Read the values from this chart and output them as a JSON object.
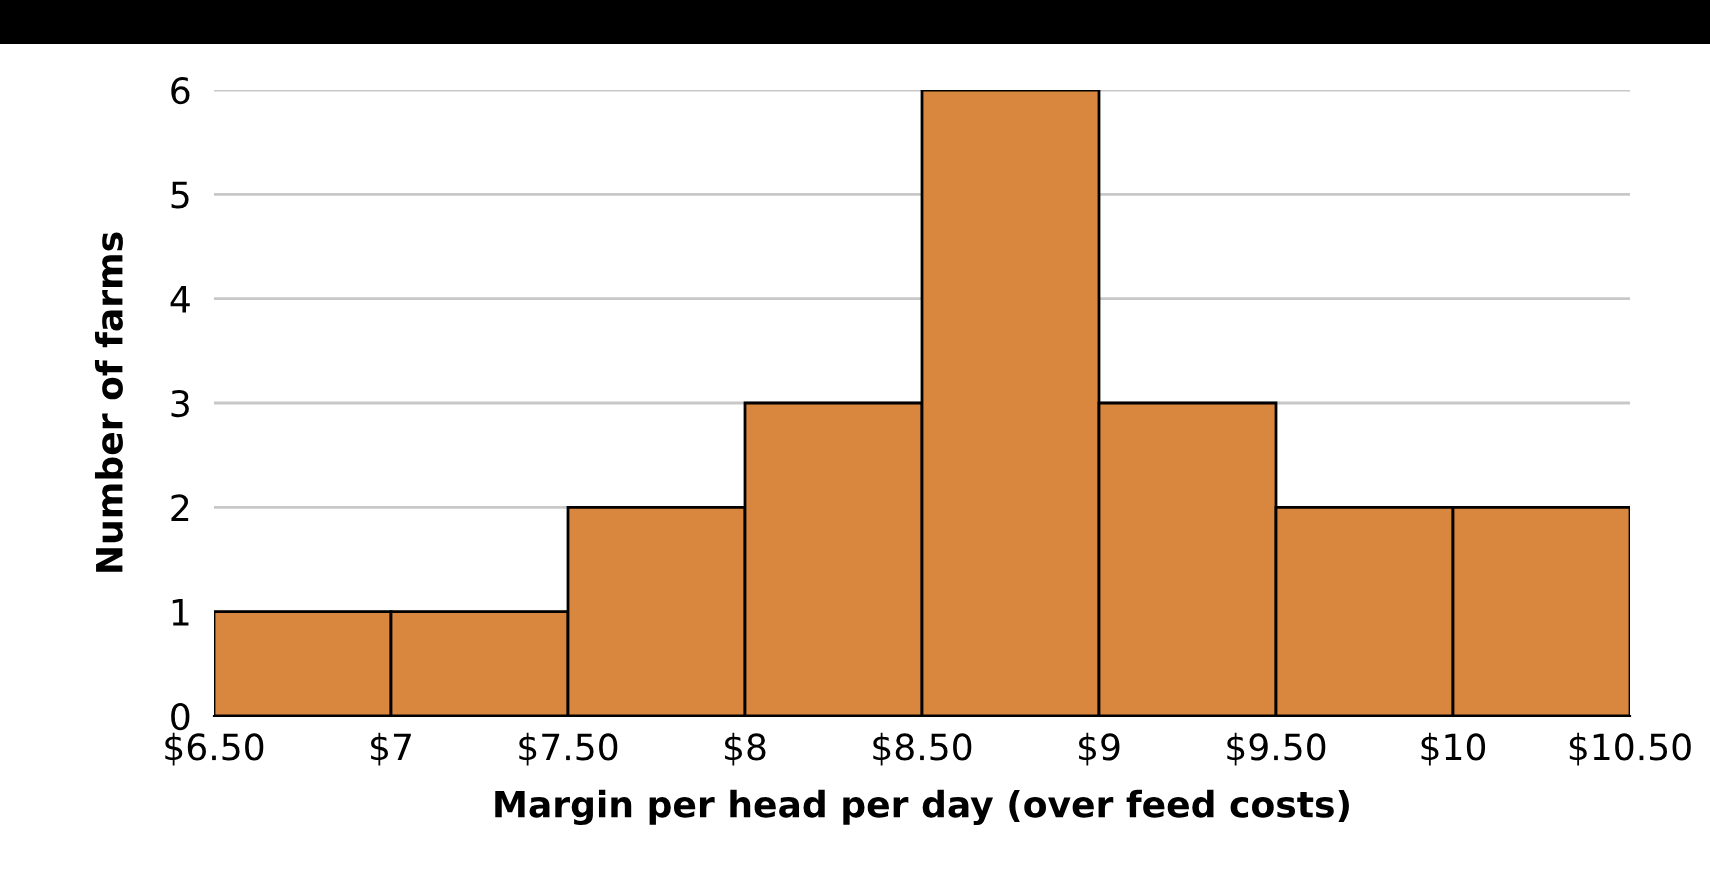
{
  "chart_data": {
    "type": "histogram",
    "xlabel": "Margin per head per day (over feed costs)",
    "ylabel": "Number of farms",
    "bins": [
      6.5,
      7,
      7.5,
      8,
      8.5,
      9,
      9.5,
      10,
      10.5
    ],
    "values": [
      1,
      1,
      2,
      3,
      6,
      3,
      2,
      2
    ],
    "color": "#d9873f",
    "xlim": [
      6.5,
      10.5
    ],
    "xticks": [
      {
        "value": 6.5,
        "label": "$6.50"
      },
      {
        "value": 7,
        "label": "$7"
      },
      {
        "value": 7.5,
        "label": "$7.50"
      },
      {
        "value": 8,
        "label": "$8"
      },
      {
        "value": 8.5,
        "label": "$8.50"
      },
      {
        "value": 9,
        "label": "$9"
      },
      {
        "value": 9.5,
        "label": "$9.50"
      },
      {
        "value": 10,
        "label": "$10"
      },
      {
        "value": 10.5,
        "label": "$10.50"
      }
    ],
    "ylim": [
      0,
      6
    ],
    "yticks": [
      0,
      1,
      2,
      3,
      4,
      5,
      6
    ],
    "grid": "y",
    "legend": false
  }
}
